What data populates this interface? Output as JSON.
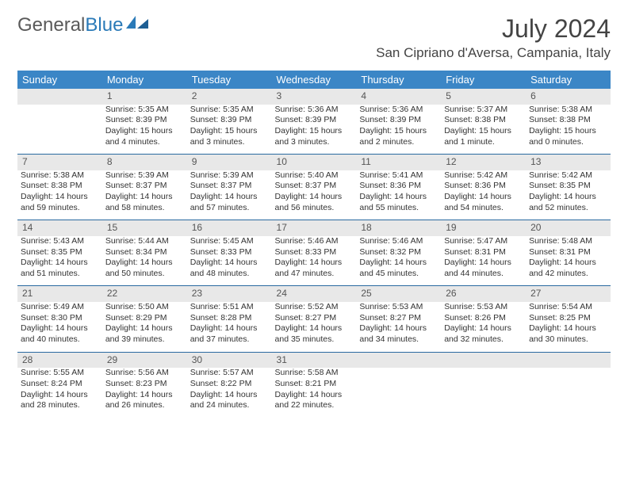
{
  "logo": {
    "grey": "General",
    "blue": "Blue"
  },
  "title": {
    "month": "July 2024",
    "location": "San Cipriano d'Aversa, Campania, Italy"
  },
  "colors": {
    "header_bg": "#3b86c6",
    "daynum_bg": "#e8e8e8",
    "rule": "#2a6aa0",
    "text": "#333333",
    "logo_grey": "#5a5a5a",
    "logo_blue": "#2a7ab8"
  },
  "dayNames": [
    "Sunday",
    "Monday",
    "Tuesday",
    "Wednesday",
    "Thursday",
    "Friday",
    "Saturday"
  ],
  "weeks": [
    {
      "nums": [
        "",
        "1",
        "2",
        "3",
        "4",
        "5",
        "6"
      ],
      "cells": [
        null,
        {
          "sr": "Sunrise: 5:35 AM",
          "ss": "Sunset: 8:39 PM",
          "dl": "Daylight: 15 hours and 4 minutes."
        },
        {
          "sr": "Sunrise: 5:35 AM",
          "ss": "Sunset: 8:39 PM",
          "dl": "Daylight: 15 hours and 3 minutes."
        },
        {
          "sr": "Sunrise: 5:36 AM",
          "ss": "Sunset: 8:39 PM",
          "dl": "Daylight: 15 hours and 3 minutes."
        },
        {
          "sr": "Sunrise: 5:36 AM",
          "ss": "Sunset: 8:39 PM",
          "dl": "Daylight: 15 hours and 2 minutes."
        },
        {
          "sr": "Sunrise: 5:37 AM",
          "ss": "Sunset: 8:38 PM",
          "dl": "Daylight: 15 hours and 1 minute."
        },
        {
          "sr": "Sunrise: 5:38 AM",
          "ss": "Sunset: 8:38 PM",
          "dl": "Daylight: 15 hours and 0 minutes."
        }
      ]
    },
    {
      "nums": [
        "7",
        "8",
        "9",
        "10",
        "11",
        "12",
        "13"
      ],
      "cells": [
        {
          "sr": "Sunrise: 5:38 AM",
          "ss": "Sunset: 8:38 PM",
          "dl": "Daylight: 14 hours and 59 minutes."
        },
        {
          "sr": "Sunrise: 5:39 AM",
          "ss": "Sunset: 8:37 PM",
          "dl": "Daylight: 14 hours and 58 minutes."
        },
        {
          "sr": "Sunrise: 5:39 AM",
          "ss": "Sunset: 8:37 PM",
          "dl": "Daylight: 14 hours and 57 minutes."
        },
        {
          "sr": "Sunrise: 5:40 AM",
          "ss": "Sunset: 8:37 PM",
          "dl": "Daylight: 14 hours and 56 minutes."
        },
        {
          "sr": "Sunrise: 5:41 AM",
          "ss": "Sunset: 8:36 PM",
          "dl": "Daylight: 14 hours and 55 minutes."
        },
        {
          "sr": "Sunrise: 5:42 AM",
          "ss": "Sunset: 8:36 PM",
          "dl": "Daylight: 14 hours and 54 minutes."
        },
        {
          "sr": "Sunrise: 5:42 AM",
          "ss": "Sunset: 8:35 PM",
          "dl": "Daylight: 14 hours and 52 minutes."
        }
      ]
    },
    {
      "nums": [
        "14",
        "15",
        "16",
        "17",
        "18",
        "19",
        "20"
      ],
      "cells": [
        {
          "sr": "Sunrise: 5:43 AM",
          "ss": "Sunset: 8:35 PM",
          "dl": "Daylight: 14 hours and 51 minutes."
        },
        {
          "sr": "Sunrise: 5:44 AM",
          "ss": "Sunset: 8:34 PM",
          "dl": "Daylight: 14 hours and 50 minutes."
        },
        {
          "sr": "Sunrise: 5:45 AM",
          "ss": "Sunset: 8:33 PM",
          "dl": "Daylight: 14 hours and 48 minutes."
        },
        {
          "sr": "Sunrise: 5:46 AM",
          "ss": "Sunset: 8:33 PM",
          "dl": "Daylight: 14 hours and 47 minutes."
        },
        {
          "sr": "Sunrise: 5:46 AM",
          "ss": "Sunset: 8:32 PM",
          "dl": "Daylight: 14 hours and 45 minutes."
        },
        {
          "sr": "Sunrise: 5:47 AM",
          "ss": "Sunset: 8:31 PM",
          "dl": "Daylight: 14 hours and 44 minutes."
        },
        {
          "sr": "Sunrise: 5:48 AM",
          "ss": "Sunset: 8:31 PM",
          "dl": "Daylight: 14 hours and 42 minutes."
        }
      ]
    },
    {
      "nums": [
        "21",
        "22",
        "23",
        "24",
        "25",
        "26",
        "27"
      ],
      "cells": [
        {
          "sr": "Sunrise: 5:49 AM",
          "ss": "Sunset: 8:30 PM",
          "dl": "Daylight: 14 hours and 40 minutes."
        },
        {
          "sr": "Sunrise: 5:50 AM",
          "ss": "Sunset: 8:29 PM",
          "dl": "Daylight: 14 hours and 39 minutes."
        },
        {
          "sr": "Sunrise: 5:51 AM",
          "ss": "Sunset: 8:28 PM",
          "dl": "Daylight: 14 hours and 37 minutes."
        },
        {
          "sr": "Sunrise: 5:52 AM",
          "ss": "Sunset: 8:27 PM",
          "dl": "Daylight: 14 hours and 35 minutes."
        },
        {
          "sr": "Sunrise: 5:53 AM",
          "ss": "Sunset: 8:27 PM",
          "dl": "Daylight: 14 hours and 34 minutes."
        },
        {
          "sr": "Sunrise: 5:53 AM",
          "ss": "Sunset: 8:26 PM",
          "dl": "Daylight: 14 hours and 32 minutes."
        },
        {
          "sr": "Sunrise: 5:54 AM",
          "ss": "Sunset: 8:25 PM",
          "dl": "Daylight: 14 hours and 30 minutes."
        }
      ]
    },
    {
      "nums": [
        "28",
        "29",
        "30",
        "31",
        "",
        "",
        ""
      ],
      "cells": [
        {
          "sr": "Sunrise: 5:55 AM",
          "ss": "Sunset: 8:24 PM",
          "dl": "Daylight: 14 hours and 28 minutes."
        },
        {
          "sr": "Sunrise: 5:56 AM",
          "ss": "Sunset: 8:23 PM",
          "dl": "Daylight: 14 hours and 26 minutes."
        },
        {
          "sr": "Sunrise: 5:57 AM",
          "ss": "Sunset: 8:22 PM",
          "dl": "Daylight: 14 hours and 24 minutes."
        },
        {
          "sr": "Sunrise: 5:58 AM",
          "ss": "Sunset: 8:21 PM",
          "dl": "Daylight: 14 hours and 22 minutes."
        },
        null,
        null,
        null
      ]
    }
  ]
}
